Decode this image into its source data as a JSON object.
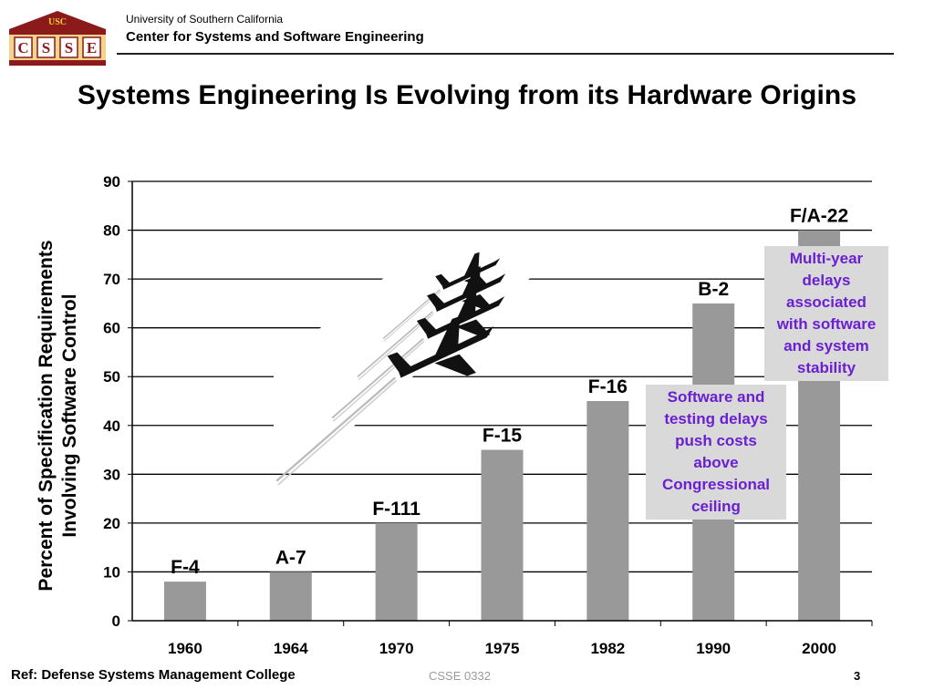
{
  "header": {
    "logo_text_top": "USC",
    "logo_letters": [
      "C",
      "S",
      "S",
      "E"
    ],
    "university": "University of Southern California",
    "center": "Center for Systems and Software Engineering"
  },
  "title": "Systems Engineering Is Evolving from its Hardware Origins",
  "chart_data": {
    "type": "bar",
    "title": "",
    "ylabel_line1": "Percent of Specification Requirements",
    "ylabel_line2": "Involving Software Control",
    "xlabel": "",
    "categories": [
      "1960",
      "1964",
      "1970",
      "1975",
      "1982",
      "1990",
      "2000"
    ],
    "values": [
      8,
      10,
      20,
      35,
      45,
      65,
      80
    ],
    "bar_labels": [
      "F-4",
      "A-7",
      "F-111",
      "F-15",
      "F-16",
      "B-2",
      "F/A-22"
    ],
    "ylim": [
      0,
      90
    ],
    "yticks": [
      "0",
      "10",
      "20",
      "30",
      "40",
      "50",
      "60",
      "70",
      "80",
      "90"
    ],
    "grid": true,
    "bar_color": "#999999",
    "annotations": [
      "Software and testing delays push costs above Congressional ceiling",
      "Multi-year delays associated with software and system stability"
    ]
  },
  "notes": {
    "note1_lines": [
      "Software and",
      "testing delays",
      "push costs",
      "above",
      "Congressional",
      "ceiling"
    ],
    "note2_lines": [
      "Multi-year",
      "delays",
      "associated",
      "with software",
      "and system",
      "stability"
    ],
    "color": "#6a1fd1"
  },
  "footer": {
    "ref": "Ref:  Defense Systems Management College",
    "code": "CSSE 0332",
    "page": "3"
  }
}
